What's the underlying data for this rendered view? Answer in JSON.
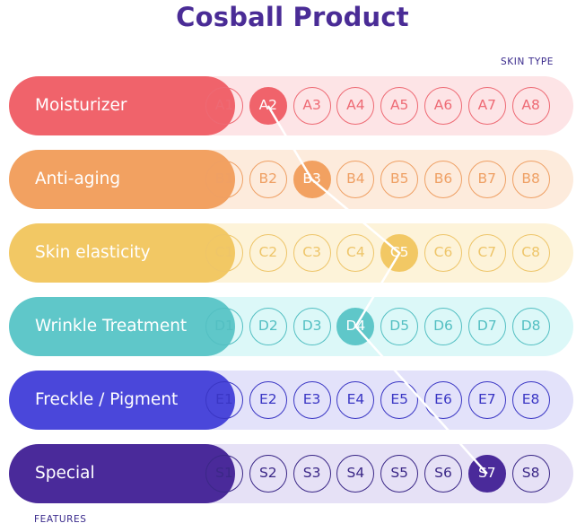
{
  "title": "Cosball Product",
  "skin_type_label": "SKIN TYPE",
  "features_label": "FEATURES",
  "rows": [
    {
      "label": "Moisturizer",
      "cells": [
        "A1",
        "A2",
        "A3",
        "A4",
        "A5",
        "A6",
        "A7",
        "A8"
      ],
      "selected": 1,
      "color": "#f0636b",
      "track": "#fde4e6",
      "text": "#ee6a74"
    },
    {
      "label": "Anti-aging",
      "cells": [
        "B1",
        "B2",
        "B3",
        "B4",
        "B5",
        "B6",
        "B7",
        "B8"
      ],
      "selected": 2,
      "color": "#f2a161",
      "track": "#fdebdc",
      "text": "#efa064"
    },
    {
      "label": "Skin elasticity",
      "cells": [
        "C1",
        "C2",
        "C3",
        "C4",
        "C5",
        "C6",
        "C7",
        "C8"
      ],
      "selected": 4,
      "color": "#f2c864",
      "track": "#fdf3d9",
      "text": "#eec569"
    },
    {
      "label": "Wrinkle Treatment",
      "cells": [
        "D1",
        "D2",
        "D3",
        "D4",
        "D5",
        "D6",
        "D7",
        "D8"
      ],
      "selected": 3,
      "color": "#5fc7c9",
      "track": "#dcf8f8",
      "text": "#53bfc2"
    },
    {
      "label": "Freckle / Pigment",
      "cells": [
        "E1",
        "E2",
        "E3",
        "E4",
        "E5",
        "E6",
        "E7",
        "E8"
      ],
      "selected": null,
      "color": "#4a47da",
      "track": "#e3e2fa",
      "text": "#3a36c4"
    },
    {
      "label": "Special",
      "cells": [
        "S1",
        "S2",
        "S3",
        "S4",
        "S5",
        "S6",
        "S7",
        "S8"
      ],
      "selected": 6,
      "color": "#4a2a9a",
      "track": "#e6e1f6",
      "text": "#3b2887"
    }
  ]
}
